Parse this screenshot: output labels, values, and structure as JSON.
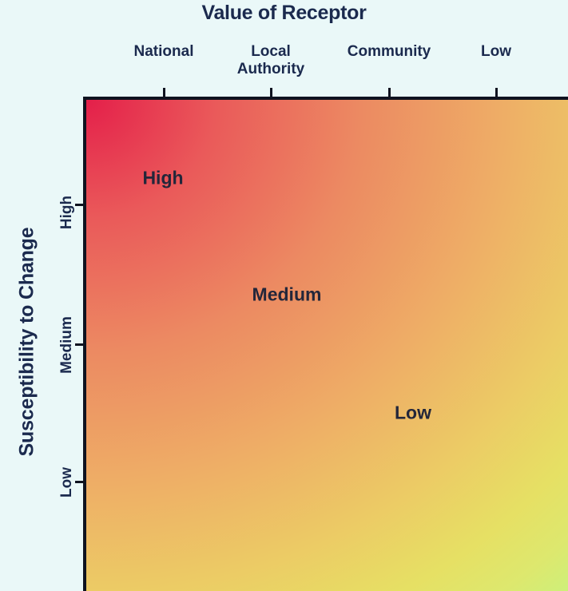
{
  "diagram": {
    "title": "Value of Receptor",
    "y_axis_title": "Susceptibility to Change",
    "x_categories": [
      {
        "line1": "",
        "line2": "National"
      },
      {
        "line1": "Local",
        "line2": "Authority"
      },
      {
        "line1": "",
        "line2": "Community"
      },
      {
        "line1": "",
        "line2": "Low"
      }
    ],
    "y_categories": [
      "High",
      "Medium",
      "Low"
    ],
    "regions": [
      "High",
      "Medium",
      "Low"
    ],
    "gradient_colors": {
      "top_left": "#e41f4a",
      "middle": "#eeae66",
      "bottom_right": "#cdf07a"
    },
    "axis_color": "#0f1320",
    "text_color": "#1b2a4e"
  }
}
